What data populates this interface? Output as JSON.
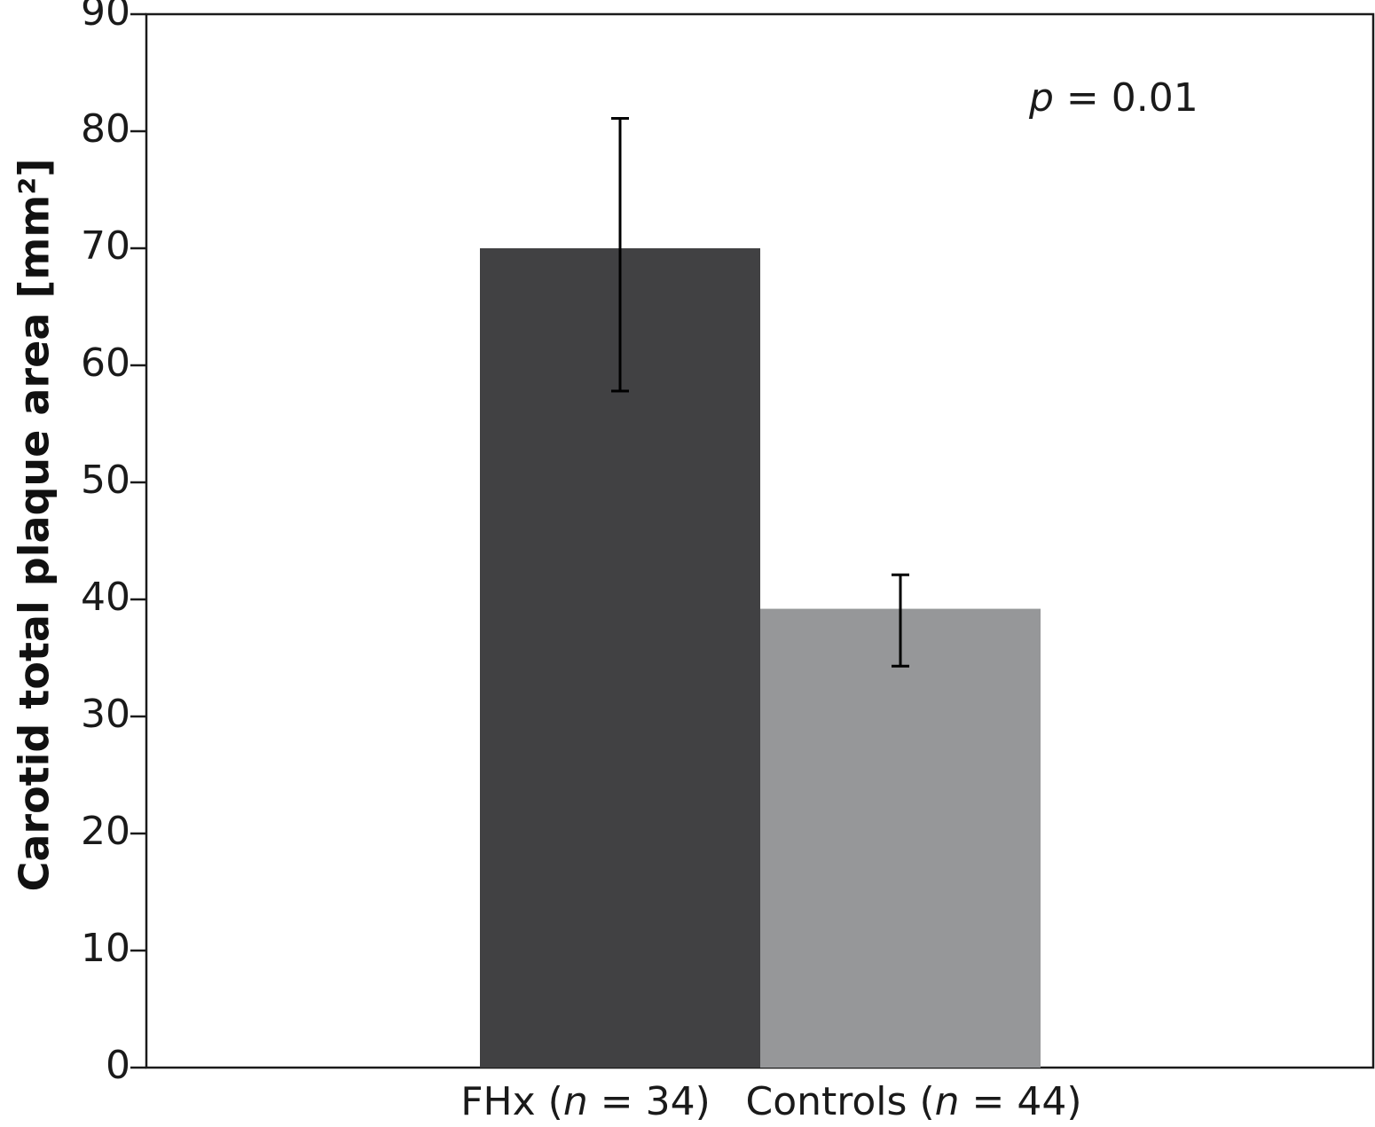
{
  "chart_data": {
    "type": "bar",
    "categories": [
      "FHx",
      "Controls"
    ],
    "category_labels": [
      {
        "prefix": "FHx (",
        "italic": "n",
        "suffix": " = 34)"
      },
      {
        "prefix": "Controls (",
        "italic": "n",
        "suffix": " = 44)"
      }
    ],
    "values": [
      70,
      39.2
    ],
    "error_bars": [
      {
        "low": 57.8,
        "high": 81.1
      },
      {
        "low": 34.3,
        "high": 42.1
      }
    ],
    "colors": [
      "#414143",
      "#969799"
    ],
    "ylabel": "Carotid total plaque area [mm²]",
    "ylim": [
      0,
      90
    ],
    "yticks": [
      0,
      10,
      20,
      30,
      40,
      50,
      60,
      70,
      80,
      90
    ],
    "annotation": {
      "italic": "p",
      "text": " = 0.01"
    },
    "grid": false,
    "legend": "none"
  }
}
